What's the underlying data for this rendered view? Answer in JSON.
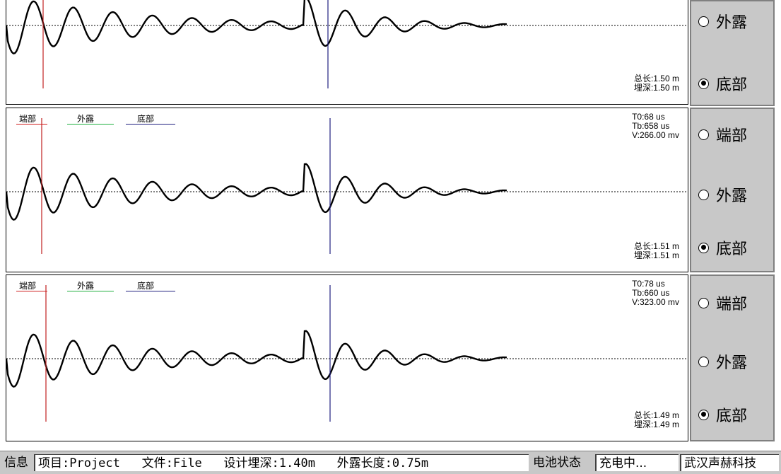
{
  "panels": [
    {
      "show_legend": false,
      "legend": [],
      "t0": "",
      "tb": "",
      "v": "",
      "total_length": "总长:1.50  m",
      "burial_depth": "埋深:1.50  m"
    },
    {
      "show_legend": true,
      "legend": [
        {
          "label": "端部",
          "color": "#d02020"
        },
        {
          "label": "外露",
          "color": "#20b040"
        },
        {
          "label": "底部",
          "color": "#202080"
        }
      ],
      "t0": "T0:68  us",
      "tb": "Tb:658  us",
      "v": "V:266.00 mv",
      "total_length": "总长:1.51  m",
      "burial_depth": "埋深:1.51  m"
    },
    {
      "show_legend": true,
      "legend": [
        {
          "label": "端部",
          "color": "#d02020"
        },
        {
          "label": "外露",
          "color": "#20b040"
        },
        {
          "label": "底部",
          "color": "#202080"
        }
      ],
      "t0": "T0:78  us",
      "tb": "Tb:660  us",
      "v": "V:323.00 mv",
      "total_length": "总长:1.49  m",
      "burial_depth": "埋深:1.49  m"
    }
  ],
  "side_panels": [
    {
      "options": [
        {
          "label": "外露",
          "selected": false
        },
        {
          "label": "底部",
          "selected": true
        }
      ]
    },
    {
      "options": [
        {
          "label": "端部",
          "selected": false
        },
        {
          "label": "外露",
          "selected": false
        },
        {
          "label": "底部",
          "selected": true
        }
      ]
    },
    {
      "options": [
        {
          "label": "端部",
          "selected": false
        },
        {
          "label": "外露",
          "selected": false
        },
        {
          "label": "底部",
          "selected": true
        }
      ]
    }
  ],
  "status_bar": {
    "info_label": "信息",
    "project": "项目:Project",
    "file": "文件:File",
    "design_depth": "设计埋深:1.40m",
    "exposed_length": "外露长度:0.75m",
    "battery_label": "电池状态",
    "battery_value": "充电中...",
    "company": "武汉声赫科技"
  },
  "colors": {
    "start_marker": "#c02020",
    "bottom_marker": "#202080",
    "waveform": "#000000",
    "panel_bg": "#c8c8c8"
  }
}
